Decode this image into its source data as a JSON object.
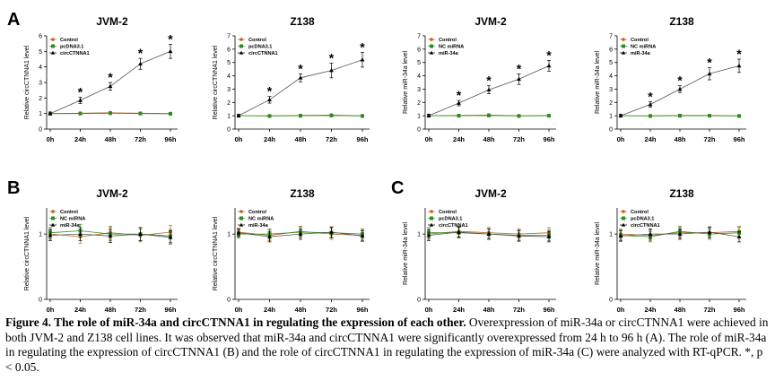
{
  "figure_labels": [
    "A",
    "B",
    "C"
  ],
  "colors": {
    "control": "#b5651d",
    "green": "#2e8b1e",
    "black": "#000000",
    "line_control": "#b5651d",
    "line_green": "#2e8b1e",
    "axis": "#000000"
  },
  "chart_data": [
    {
      "type": "line",
      "title": "JVM-2",
      "ylabel": "Relative circCTNNA1 level",
      "categories": [
        "0h",
        "24h",
        "48h",
        "72h",
        "96h"
      ],
      "ylim": [
        0,
        6
      ],
      "yticks": [
        "0",
        "1",
        "2",
        "3",
        "4",
        "5",
        "6"
      ],
      "series": [
        {
          "name": "Control",
          "values": [
            1.0,
            1.02,
            1.05,
            1.02,
            1.0
          ],
          "errors": [
            0.05,
            0.05,
            0.05,
            0.05,
            0.05
          ],
          "marker": "circle",
          "color": "#b5651d"
        },
        {
          "name": "pcDNA3.1",
          "values": [
            1.0,
            1.0,
            1.02,
            1.0,
            0.98
          ],
          "errors": [
            0.05,
            0.05,
            0.05,
            0.05,
            0.05
          ],
          "marker": "square",
          "color": "#2e8b1e"
        },
        {
          "name": "circCTNNA1",
          "values": [
            1.0,
            1.85,
            2.75,
            4.2,
            5.0
          ],
          "errors": [
            0.1,
            0.2,
            0.25,
            0.35,
            0.45
          ],
          "marker": "triangle",
          "color": "#000000"
        }
      ],
      "significance": [
        "",
        "*",
        "*",
        "*",
        "*"
      ]
    },
    {
      "type": "line",
      "title": "Z138",
      "ylabel": "Relative circCTNNA1 level",
      "categories": [
        "0h",
        "24h",
        "48h",
        "72h",
        "96h"
      ],
      "ylim": [
        0,
        7
      ],
      "yticks": [
        "0",
        "1",
        "2",
        "3",
        "4",
        "5",
        "6",
        "7"
      ],
      "series": [
        {
          "name": "Control",
          "values": [
            1.0,
            1.0,
            1.02,
            1.05,
            1.0
          ],
          "errors": [
            0.05,
            0.05,
            0.05,
            0.05,
            0.05
          ],
          "marker": "circle",
          "color": "#b5651d"
        },
        {
          "name": "pcDNA3.1",
          "values": [
            1.0,
            0.98,
            1.0,
            1.02,
            0.98
          ],
          "errors": [
            0.05,
            0.05,
            0.05,
            0.05,
            0.05
          ],
          "marker": "square",
          "color": "#2e8b1e"
        },
        {
          "name": "circCTNNA1",
          "values": [
            1.0,
            2.2,
            3.85,
            4.4,
            5.2
          ],
          "errors": [
            0.1,
            0.25,
            0.3,
            0.55,
            0.55
          ],
          "marker": "triangle",
          "color": "#000000"
        }
      ],
      "significance": [
        "",
        "*",
        "*",
        "*",
        "*"
      ]
    },
    {
      "type": "line",
      "title": "JVM-2",
      "ylabel": "Relative miR-34a level",
      "categories": [
        "0h",
        "24h",
        "48h",
        "72h",
        "96h"
      ],
      "ylim": [
        0,
        7
      ],
      "yticks": [
        "0",
        "1",
        "2",
        "3",
        "4",
        "5",
        "6",
        "7"
      ],
      "series": [
        {
          "name": "Control",
          "values": [
            1.0,
            1.02,
            1.05,
            1.0,
            1.02
          ],
          "errors": [
            0.05,
            0.05,
            0.05,
            0.05,
            0.05
          ],
          "marker": "circle",
          "color": "#b5651d"
        },
        {
          "name": "NC miRNA",
          "values": [
            1.0,
            1.0,
            1.02,
            0.98,
            1.0
          ],
          "errors": [
            0.05,
            0.05,
            0.05,
            0.05,
            0.05
          ],
          "marker": "square",
          "color": "#2e8b1e"
        },
        {
          "name": "miR-34a",
          "values": [
            1.0,
            1.95,
            2.95,
            3.75,
            4.75
          ],
          "errors": [
            0.1,
            0.2,
            0.3,
            0.4,
            0.4
          ],
          "marker": "triangle",
          "color": "#000000"
        }
      ],
      "significance": [
        "",
        "*",
        "*",
        "*",
        "*"
      ]
    },
    {
      "type": "line",
      "title": "Z138",
      "ylabel": "Relative miR-34a level",
      "categories": [
        "0h",
        "24h",
        "48h",
        "72h",
        "96h"
      ],
      "ylim": [
        0,
        7
      ],
      "yticks": [
        "0",
        "1",
        "2",
        "3",
        "4",
        "5",
        "6",
        "7"
      ],
      "series": [
        {
          "name": "Control",
          "values": [
            1.0,
            1.0,
            1.02,
            1.02,
            1.0
          ],
          "errors": [
            0.05,
            0.05,
            0.05,
            0.05,
            0.05
          ],
          "marker": "circle",
          "color": "#b5651d"
        },
        {
          "name": "NC miRNA",
          "values": [
            1.0,
            0.98,
            1.0,
            1.0,
            0.98
          ],
          "errors": [
            0.05,
            0.05,
            0.05,
            0.05,
            0.05
          ],
          "marker": "square",
          "color": "#2e8b1e"
        },
        {
          "name": "miR-34a",
          "values": [
            1.0,
            1.85,
            3.0,
            4.15,
            4.75
          ],
          "errors": [
            0.1,
            0.2,
            0.25,
            0.45,
            0.5
          ],
          "marker": "triangle",
          "color": "#000000"
        }
      ],
      "significance": [
        "",
        "*",
        "*",
        "*",
        "*"
      ]
    },
    {
      "type": "line",
      "title": "JVM-2",
      "ylabel": "Relative circCTNNA1 level",
      "categories": [
        "0h",
        "24h",
        "48h",
        "72h",
        "96h"
      ],
      "ylim": [
        0,
        1.4
      ],
      "yticks": [
        "0",
        "1"
      ],
      "ytick_values": [
        0,
        1
      ],
      "series": [
        {
          "name": "Control",
          "values": [
            1.0,
            0.96,
            1.02,
            0.98,
            1.03
          ],
          "errors": [
            0.08,
            0.1,
            0.1,
            0.1,
            0.1
          ],
          "marker": "circle",
          "color": "#b5651d"
        },
        {
          "name": "NC miRNA",
          "values": [
            1.02,
            1.05,
            1.0,
            1.0,
            0.97
          ],
          "errors": [
            0.08,
            0.1,
            0.1,
            0.1,
            0.1
          ],
          "marker": "square",
          "color": "#2e8b1e"
        },
        {
          "name": "miR-34a",
          "values": [
            0.98,
            1.0,
            0.97,
            1.0,
            0.95
          ],
          "errors": [
            0.08,
            0.1,
            0.1,
            0.1,
            0.1
          ],
          "marker": "triangle",
          "color": "#000000"
        }
      ],
      "significance": [
        "",
        "",
        "",
        "",
        ""
      ]
    },
    {
      "type": "line",
      "title": "Z138",
      "ylabel": "Relative circCTNNA1 level",
      "categories": [
        "0h",
        "24h",
        "48h",
        "72h",
        "96h"
      ],
      "ylim": [
        0,
        1.4
      ],
      "yticks": [
        "0",
        "1"
      ],
      "ytick_values": [
        0,
        1
      ],
      "series": [
        {
          "name": "Control",
          "values": [
            1.03,
            0.98,
            1.04,
            1.0,
            0.98
          ],
          "errors": [
            0.06,
            0.08,
            0.08,
            0.08,
            0.08
          ],
          "marker": "circle",
          "color": "#b5651d"
        },
        {
          "name": "NC miRNA",
          "values": [
            1.0,
            1.0,
            1.03,
            1.02,
            1.0
          ],
          "errors": [
            0.06,
            0.08,
            0.08,
            0.08,
            0.08
          ],
          "marker": "square",
          "color": "#2e8b1e"
        },
        {
          "name": "miR-34a",
          "values": [
            1.02,
            0.96,
            1.0,
            1.03,
            0.97
          ],
          "errors": [
            0.06,
            0.08,
            0.08,
            0.08,
            0.08
          ],
          "marker": "triangle",
          "color": "#000000"
        }
      ],
      "significance": [
        "",
        "",
        "",
        "",
        ""
      ]
    },
    {
      "type": "line",
      "title": "JVM-2",
      "ylabel": "Relative miR-34a level",
      "categories": [
        "0h",
        "24h",
        "48h",
        "72h",
        "96h"
      ],
      "ylim": [
        0,
        1.4
      ],
      "yticks": [
        "0",
        "1"
      ],
      "ytick_values": [
        0,
        1
      ],
      "series": [
        {
          "name": "Control",
          "values": [
            1.0,
            1.04,
            1.02,
            1.0,
            1.02
          ],
          "errors": [
            0.08,
            0.08,
            0.08,
            0.08,
            0.08
          ],
          "marker": "circle",
          "color": "#b5651d"
        },
        {
          "name": "pcDNA3.1",
          "values": [
            1.02,
            1.02,
            1.0,
            0.98,
            0.98
          ],
          "errors": [
            0.08,
            0.08,
            0.08,
            0.08,
            0.08
          ],
          "marker": "square",
          "color": "#2e8b1e"
        },
        {
          "name": "circCTNNA1",
          "values": [
            0.98,
            1.03,
            1.0,
            0.97,
            0.96
          ],
          "errors": [
            0.08,
            0.08,
            0.08,
            0.08,
            0.08
          ],
          "marker": "triangle",
          "color": "#000000"
        }
      ],
      "significance": [
        "",
        "",
        "",
        "",
        ""
      ]
    },
    {
      "type": "line",
      "title": "Z138",
      "ylabel": "Relative miR-34a level",
      "categories": [
        "0h",
        "24h",
        "48h",
        "72h",
        "96h"
      ],
      "ylim": [
        0,
        1.4
      ],
      "yticks": [
        "0",
        "1"
      ],
      "ytick_values": [
        0,
        1
      ],
      "series": [
        {
          "name": "Control",
          "values": [
            1.0,
            0.98,
            1.02,
            1.02,
            1.04
          ],
          "errors": [
            0.08,
            0.08,
            0.08,
            0.08,
            0.08
          ],
          "marker": "circle",
          "color": "#b5651d"
        },
        {
          "name": "pcDNA3.1",
          "values": [
            0.98,
            0.96,
            1.04,
            1.0,
            1.02
          ],
          "errors": [
            0.08,
            0.08,
            0.08,
            0.08,
            0.08
          ],
          "marker": "square",
          "color": "#2e8b1e"
        },
        {
          "name": "circCTNNA1",
          "values": [
            0.97,
            1.0,
            1.0,
            1.03,
            0.96
          ],
          "errors": [
            0.08,
            0.08,
            0.08,
            0.08,
            0.08
          ],
          "marker": "triangle",
          "color": "#000000"
        }
      ],
      "significance": [
        "",
        "",
        "",
        "",
        ""
      ]
    }
  ],
  "caption": {
    "title": "Figure 4. The role of miR-34a and circCTNNA1 in regulating the expression of each other.",
    "body": " Overexpression of miR-34a or circCTNNA1 were achieved in both JVM-2 and Z138 cell lines. It was observed that miR-34a and circCTNNA1 were significantly overexpressed from 24 h to 96 h (A). The role of miR-34a in regulating the expression of circCTNNA1 (B) and the role of circCTNNA1 in regulating the expression of miR-34a (C) were analyzed with RT-qPCR. *, p < 0.05."
  }
}
